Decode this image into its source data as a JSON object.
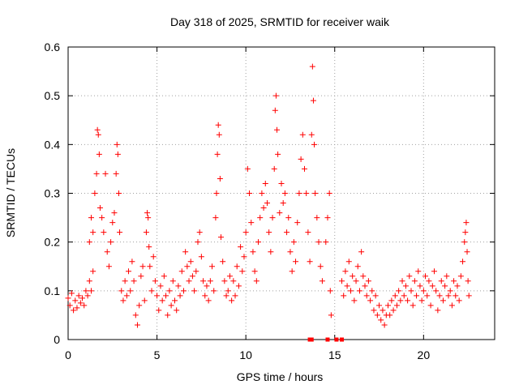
{
  "chart_data": {
    "type": "scatter",
    "title": "Day 318 of 2025, SRMTID for receiver waik",
    "xlabel": "GPS time / hours",
    "ylabel": "SRMTID / TECUs",
    "xlim": [
      0,
      24
    ],
    "ylim": [
      0,
      0.6
    ],
    "x_ticks": [
      0,
      5,
      10,
      15,
      20
    ],
    "x_tick_labels": [
      "0",
      "5",
      "10",
      "15",
      "20"
    ],
    "y_ticks": [
      0,
      0.1,
      0.2,
      0.3,
      0.4,
      0.5,
      0.6
    ],
    "y_tick_labels": [
      "0",
      "0.1",
      "0.2",
      "0.3",
      "0.4",
      "0.5",
      "0.6"
    ],
    "grid": true,
    "marker": "plus",
    "color": "#ff0000",
    "series": [
      {
        "name": "SRMTID",
        "points": [
          [
            0.0,
            0.085
          ],
          [
            0.1,
            0.07
          ],
          [
            0.2,
            0.095
          ],
          [
            0.3,
            0.06
          ],
          [
            0.4,
            0.08
          ],
          [
            0.5,
            0.065
          ],
          [
            0.6,
            0.09
          ],
          [
            0.7,
            0.075
          ],
          [
            0.8,
            0.085
          ],
          [
            0.9,
            0.07
          ],
          [
            1.0,
            0.1
          ],
          [
            1.1,
            0.09
          ],
          [
            1.2,
            0.12
          ],
          [
            1.3,
            0.1
          ],
          [
            1.4,
            0.14
          ],
          [
            1.2,
            0.2
          ],
          [
            1.3,
            0.25
          ],
          [
            1.4,
            0.22
          ],
          [
            1.5,
            0.3
          ],
          [
            1.6,
            0.34
          ],
          [
            1.65,
            0.43
          ],
          [
            1.7,
            0.42
          ],
          [
            1.75,
            0.38
          ],
          [
            1.8,
            0.27
          ],
          [
            1.9,
            0.25
          ],
          [
            2.0,
            0.22
          ],
          [
            2.1,
            0.34
          ],
          [
            2.2,
            0.18
          ],
          [
            2.3,
            0.15
          ],
          [
            2.4,
            0.2
          ],
          [
            2.5,
            0.24
          ],
          [
            2.6,
            0.26
          ],
          [
            2.7,
            0.34
          ],
          [
            2.75,
            0.4
          ],
          [
            2.8,
            0.38
          ],
          [
            2.85,
            0.3
          ],
          [
            2.9,
            0.22
          ],
          [
            3.0,
            0.1
          ],
          [
            3.1,
            0.08
          ],
          [
            3.2,
            0.12
          ],
          [
            3.3,
            0.09
          ],
          [
            3.4,
            0.14
          ],
          [
            3.5,
            0.1
          ],
          [
            3.6,
            0.16
          ],
          [
            3.7,
            0.12
          ],
          [
            3.8,
            0.05
          ],
          [
            3.9,
            0.03
          ],
          [
            4.0,
            0.07
          ],
          [
            4.1,
            0.13
          ],
          [
            4.2,
            0.15
          ],
          [
            4.3,
            0.08
          ],
          [
            4.4,
            0.22
          ],
          [
            4.45,
            0.26
          ],
          [
            4.5,
            0.25
          ],
          [
            4.55,
            0.19
          ],
          [
            4.6,
            0.15
          ],
          [
            4.7,
            0.1
          ],
          [
            4.8,
            0.17
          ],
          [
            4.9,
            0.12
          ],
          [
            5.0,
            0.09
          ],
          [
            5.1,
            0.06
          ],
          [
            5.2,
            0.11
          ],
          [
            5.3,
            0.08
          ],
          [
            5.4,
            0.13
          ],
          [
            5.5,
            0.09
          ],
          [
            5.6,
            0.05
          ],
          [
            5.7,
            0.1
          ],
          [
            5.8,
            0.07
          ],
          [
            5.9,
            0.12
          ],
          [
            6.0,
            0.08
          ],
          [
            6.1,
            0.06
          ],
          [
            6.2,
            0.11
          ],
          [
            6.3,
            0.09
          ],
          [
            6.4,
            0.14
          ],
          [
            6.5,
            0.1
          ],
          [
            6.6,
            0.18
          ],
          [
            6.7,
            0.15
          ],
          [
            6.8,
            0.12
          ],
          [
            6.9,
            0.16
          ],
          [
            7.0,
            0.13
          ],
          [
            7.1,
            0.1
          ],
          [
            7.2,
            0.14
          ],
          [
            7.3,
            0.2
          ],
          [
            7.4,
            0.22
          ],
          [
            7.5,
            0.17
          ],
          [
            7.6,
            0.12
          ],
          [
            7.7,
            0.09
          ],
          [
            7.8,
            0.11
          ],
          [
            7.9,
            0.08
          ],
          [
            8.0,
            0.12
          ],
          [
            8.1,
            0.15
          ],
          [
            8.2,
            0.1
          ],
          [
            8.3,
            0.25
          ],
          [
            8.35,
            0.3
          ],
          [
            8.4,
            0.38
          ],
          [
            8.45,
            0.44
          ],
          [
            8.5,
            0.42
          ],
          [
            8.55,
            0.33
          ],
          [
            8.6,
            0.21
          ],
          [
            8.7,
            0.16
          ],
          [
            8.8,
            0.12
          ],
          [
            8.9,
            0.09
          ],
          [
            9.0,
            0.1
          ],
          [
            9.1,
            0.13
          ],
          [
            9.2,
            0.08
          ],
          [
            9.3,
            0.12
          ],
          [
            9.4,
            0.09
          ],
          [
            9.5,
            0.15
          ],
          [
            9.6,
            0.11
          ],
          [
            9.7,
            0.19
          ],
          [
            9.8,
            0.14
          ],
          [
            9.9,
            0.17
          ],
          [
            10.0,
            0.22
          ],
          [
            10.1,
            0.35
          ],
          [
            10.2,
            0.3
          ],
          [
            10.3,
            0.24
          ],
          [
            10.4,
            0.18
          ],
          [
            10.5,
            0.14
          ],
          [
            10.6,
            0.12
          ],
          [
            10.7,
            0.2
          ],
          [
            10.8,
            0.25
          ],
          [
            10.9,
            0.3
          ],
          [
            11.0,
            0.27
          ],
          [
            11.1,
            0.32
          ],
          [
            11.2,
            0.28
          ],
          [
            11.3,
            0.22
          ],
          [
            11.4,
            0.18
          ],
          [
            11.5,
            0.25
          ],
          [
            11.6,
            0.35
          ],
          [
            11.65,
            0.47
          ],
          [
            11.7,
            0.5
          ],
          [
            11.75,
            0.43
          ],
          [
            11.8,
            0.38
          ],
          [
            11.9,
            0.26
          ],
          [
            12.0,
            0.32
          ],
          [
            12.1,
            0.28
          ],
          [
            12.2,
            0.3
          ],
          [
            12.3,
            0.22
          ],
          [
            12.4,
            0.25
          ],
          [
            12.5,
            0.18
          ],
          [
            12.6,
            0.14
          ],
          [
            12.7,
            0.2
          ],
          [
            12.8,
            0.16
          ],
          [
            12.9,
            0.24
          ],
          [
            13.0,
            0.3
          ],
          [
            13.1,
            0.37
          ],
          [
            13.2,
            0.42
          ],
          [
            13.3,
            0.35
          ],
          [
            13.4,
            0.3
          ],
          [
            13.5,
            0.22
          ],
          [
            13.6,
            0.16
          ],
          [
            13.7,
            0.42
          ],
          [
            13.75,
            0.56
          ],
          [
            13.8,
            0.49
          ],
          [
            13.85,
            0.4
          ],
          [
            13.9,
            0.3
          ],
          [
            14.0,
            0.25
          ],
          [
            14.1,
            0.2
          ],
          [
            14.2,
            0.15
          ],
          [
            14.3,
            0.12
          ],
          [
            14.5,
            0.2
          ],
          [
            14.6,
            0.25
          ],
          [
            14.7,
            0.3
          ],
          [
            14.75,
            0.1
          ],
          [
            14.8,
            0.05
          ],
          [
            15.4,
            0.12
          ],
          [
            15.5,
            0.09
          ],
          [
            15.6,
            0.14
          ],
          [
            15.7,
            0.11
          ],
          [
            15.8,
            0.16
          ],
          [
            15.9,
            0.1
          ],
          [
            16.0,
            0.13
          ],
          [
            16.1,
            0.08
          ],
          [
            16.2,
            0.12
          ],
          [
            16.3,
            0.15
          ],
          [
            16.4,
            0.1
          ],
          [
            16.5,
            0.18
          ],
          [
            16.6,
            0.13
          ],
          [
            16.7,
            0.11
          ],
          [
            16.8,
            0.09
          ],
          [
            16.9,
            0.12
          ],
          [
            17.0,
            0.08
          ],
          [
            17.1,
            0.1
          ],
          [
            17.2,
            0.06
          ],
          [
            17.3,
            0.09
          ],
          [
            17.4,
            0.05
          ],
          [
            17.5,
            0.07
          ],
          [
            17.6,
            0.04
          ],
          [
            17.7,
            0.06
          ],
          [
            17.8,
            0.03
          ],
          [
            17.9,
            0.05
          ],
          [
            18.0,
            0.07
          ],
          [
            18.1,
            0.05
          ],
          [
            18.2,
            0.08
          ],
          [
            18.3,
            0.06
          ],
          [
            18.4,
            0.09
          ],
          [
            18.5,
            0.07
          ],
          [
            18.6,
            0.1
          ],
          [
            18.7,
            0.08
          ],
          [
            18.8,
            0.12
          ],
          [
            18.9,
            0.09
          ],
          [
            19.0,
            0.11
          ],
          [
            19.1,
            0.08
          ],
          [
            19.2,
            0.13
          ],
          [
            19.3,
            0.1
          ],
          [
            19.4,
            0.07
          ],
          [
            19.5,
            0.12
          ],
          [
            19.6,
            0.09
          ],
          [
            19.7,
            0.14
          ],
          [
            19.8,
            0.11
          ],
          [
            19.9,
            0.08
          ],
          [
            20.0,
            0.1
          ],
          [
            20.1,
            0.13
          ],
          [
            20.2,
            0.09
          ],
          [
            20.3,
            0.12
          ],
          [
            20.4,
            0.07
          ],
          [
            20.5,
            0.11
          ],
          [
            20.6,
            0.14
          ],
          [
            20.7,
            0.1
          ],
          [
            20.8,
            0.06
          ],
          [
            20.9,
            0.09
          ],
          [
            21.0,
            0.12
          ],
          [
            21.1,
            0.08
          ],
          [
            21.2,
            0.11
          ],
          [
            21.3,
            0.13
          ],
          [
            21.4,
            0.09
          ],
          [
            21.5,
            0.1
          ],
          [
            21.6,
            0.07
          ],
          [
            21.7,
            0.12
          ],
          [
            21.8,
            0.09
          ],
          [
            21.9,
            0.11
          ],
          [
            22.0,
            0.08
          ],
          [
            22.1,
            0.13
          ],
          [
            22.2,
            0.16
          ],
          [
            22.3,
            0.2
          ],
          [
            22.35,
            0.22
          ],
          [
            22.4,
            0.24
          ],
          [
            22.45,
            0.18
          ],
          [
            22.5,
            0.12
          ],
          [
            22.55,
            0.09
          ]
        ]
      }
    ],
    "x_axis_markers": [
      13.6,
      13.7,
      14.6,
      15.1,
      15.4
    ]
  }
}
